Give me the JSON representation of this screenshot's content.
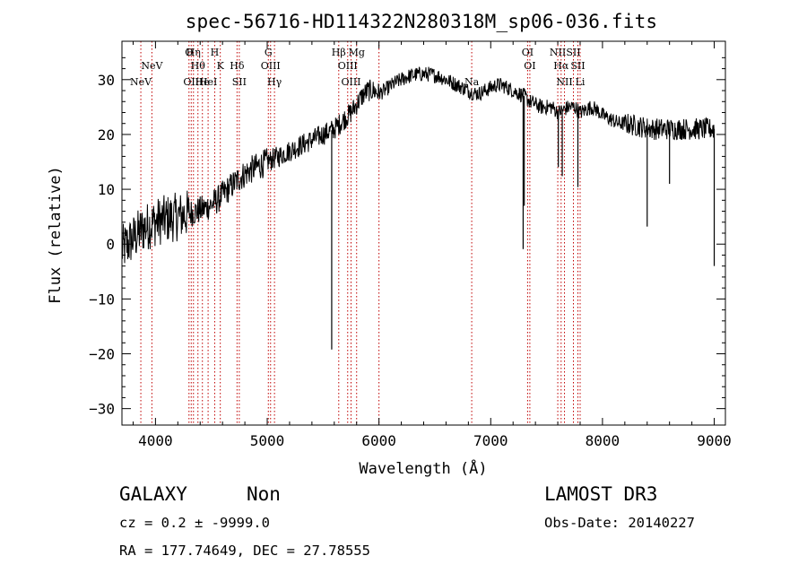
{
  "chart_data": {
    "type": "line",
    "title": "spec-56716-HD114322N280318M_sp06-036.fits",
    "xlabel": "Wavelength (Å)",
    "ylabel": "Flux (relative)",
    "xlim": [
      3700,
      9100
    ],
    "ylim": [
      -33,
      37
    ],
    "xticks": [
      4000,
      5000,
      6000,
      7000,
      8000,
      9000
    ],
    "yticks": [
      -30,
      -20,
      -10,
      0,
      10,
      20,
      30
    ],
    "series": [
      {
        "name": "flux",
        "x": [
          3700,
          3750,
          3800,
          3850,
          3900,
          3950,
          4000,
          4050,
          4100,
          4150,
          4200,
          4250,
          4300,
          4350,
          4400,
          4450,
          4500,
          4550,
          4600,
          4650,
          4700,
          4750,
          4800,
          4850,
          4900,
          4950,
          5000,
          5050,
          5100,
          5150,
          5200,
          5250,
          5300,
          5350,
          5400,
          5450,
          5500,
          5550,
          5600,
          5650,
          5700,
          5750,
          5800,
          5850,
          5900,
          5950,
          6000,
          6050,
          6100,
          6150,
          6200,
          6250,
          6300,
          6350,
          6400,
          6450,
          6500,
          6550,
          6600,
          6650,
          6700,
          6750,
          6800,
          6850,
          6900,
          6950,
          7000,
          7050,
          7100,
          7150,
          7200,
          7250,
          7300,
          7350,
          7400,
          7450,
          7500,
          7550,
          7600,
          7650,
          7700,
          7750,
          7800,
          7850,
          7900,
          7950,
          8000,
          8050,
          8100,
          8150,
          8200,
          8250,
          8300,
          8350,
          8400,
          8450,
          8500,
          8550,
          8600,
          8650,
          8700,
          8750,
          8800,
          8850,
          8900,
          8950,
          9000
        ],
        "y": [
          -1,
          0,
          1,
          2,
          3,
          3.5,
          4,
          4.3,
          4.6,
          4.8,
          5.0,
          5.3,
          5.6,
          5.9,
          6.2,
          6.6,
          7.2,
          8.0,
          9.0,
          10.0,
          11.0,
          12.0,
          12.8,
          13.5,
          14.0,
          14.5,
          15.0,
          15.5,
          16.0,
          16.5,
          17.0,
          17.5,
          18.0,
          18.5,
          19.0,
          19.5,
          20.0,
          20.5,
          21.0,
          22.0,
          23.0,
          24.0,
          25.5,
          27.0,
          28.0,
          28.0,
          27.5,
          28.0,
          28.8,
          29.5,
          30.0,
          30.5,
          30.8,
          31.0,
          31.0,
          31.0,
          30.8,
          30.5,
          30.0,
          29.5,
          29.0,
          28.5,
          28.0,
          27.5,
          27.5,
          28.0,
          28.5,
          29.0,
          29.0,
          28.5,
          28.0,
          27.5,
          27.0,
          26.0,
          25.5,
          25.0,
          25.0,
          25.0,
          24.0,
          24.5,
          25.0,
          25.0,
          24.0,
          24.5,
          25.0,
          24.5,
          23.5,
          23.0,
          22.5,
          22.0,
          22.0,
          21.8,
          21.6,
          21.4,
          21.2,
          21.0,
          21.0,
          21.0,
          21.0,
          21.0,
          21.0,
          21.0,
          21.0,
          21.0,
          21.0,
          21.0,
          21.0
        ]
      }
    ],
    "absorption_features": [
      {
        "x": 5577,
        "depth": 40
      },
      {
        "x": 7290,
        "depth": 28
      },
      {
        "x": 7300,
        "depth": 20
      },
      {
        "x": 7605,
        "depth": 10
      },
      {
        "x": 7640,
        "depth": 12
      },
      {
        "x": 7780,
        "depth": 14
      },
      {
        "x": 8400,
        "depth": 18
      },
      {
        "x": 8600,
        "depth": 10
      },
      {
        "x": 9000,
        "depth": 25
      }
    ],
    "line_markers": [
      {
        "x": 3869,
        "label": "NeV",
        "row": 2
      },
      {
        "x": 3968,
        "label": "NeV",
        "row": 1
      },
      {
        "x": 4300,
        "label": "O",
        "row": 0
      },
      {
        "x": 4320,
        "label": "OII",
        "row": 2
      },
      {
        "x": 4340,
        "label": "Hη",
        "row": 0
      },
      {
        "x": 4380,
        "label": "Hθ",
        "row": 1
      },
      {
        "x": 4420,
        "label": "He",
        "row": 2
      },
      {
        "x": 4471,
        "label": "HeI",
        "row": 2
      },
      {
        "x": 4530,
        "label": "H",
        "row": 0
      },
      {
        "x": 4580,
        "label": "K",
        "row": 1
      },
      {
        "x": 4730,
        "label": "Hδ",
        "row": 1
      },
      {
        "x": 4750,
        "label": "SII",
        "row": 2
      },
      {
        "x": 5010,
        "label": "G",
        "row": 0
      },
      {
        "x": 5030,
        "label": "OIII",
        "row": 1
      },
      {
        "x": 5065,
        "label": "Hγ",
        "row": 2
      },
      {
        "x": 5640,
        "label": "Hβ",
        "row": 0
      },
      {
        "x": 5720,
        "label": "OIII",
        "row": 1
      },
      {
        "x": 5750,
        "label": "OIII",
        "row": 2
      },
      {
        "x": 5800,
        "label": "Mg",
        "row": 0
      },
      {
        "x": 6000,
        "label": "",
        "row": 0
      },
      {
        "x": 6830,
        "label": "Na",
        "row": 2
      },
      {
        "x": 7330,
        "label": "OI",
        "row": 0
      },
      {
        "x": 7350,
        "label": "OI",
        "row": 1
      },
      {
        "x": 7600,
        "label": "NII",
        "row": 0
      },
      {
        "x": 7630,
        "label": "Hα",
        "row": 1
      },
      {
        "x": 7660,
        "label": "NII",
        "row": 2
      },
      {
        "x": 7740,
        "label": "SII",
        "row": 0
      },
      {
        "x": 7780,
        "label": "SII",
        "row": 1
      },
      {
        "x": 7800,
        "label": "Li",
        "row": 2
      }
    ]
  },
  "info": {
    "object_class": "GALAXY",
    "subclass": "Non",
    "survey": "LAMOST DR3",
    "redshift": "cz = 0.2 ± -9999.0",
    "obs_date": "Obs-Date: 20140227",
    "coords": "RA = 177.74649, DEC =  27.78555"
  }
}
